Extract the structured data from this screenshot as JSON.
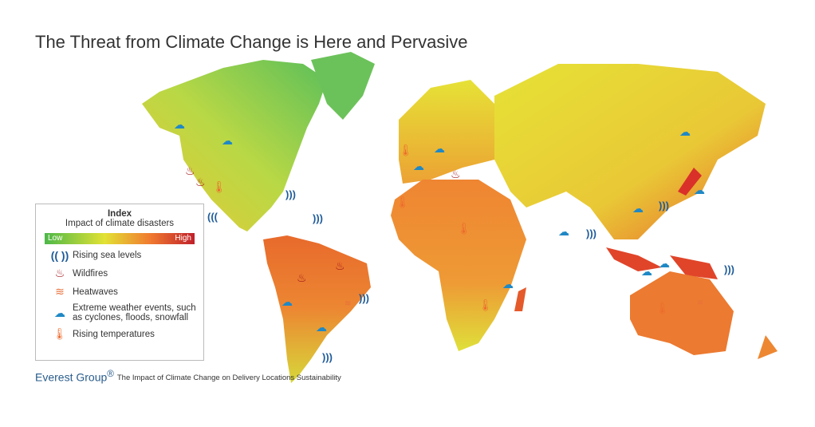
{
  "title": "The Threat from Climate Change is Here and Pervasive",
  "legend": {
    "heading": "Index",
    "subheading": "Impact of climate disasters",
    "scale_low": "Low",
    "scale_high": "High",
    "scale_colors": [
      "#4cb848",
      "#e2e234",
      "#f07b30",
      "#c0202a"
    ],
    "items": [
      {
        "icon": "rising-sea-levels-icon",
        "label": "Rising sea levels"
      },
      {
        "icon": "wildfire-icon",
        "label": "Wildfires"
      },
      {
        "icon": "heatwave-icon",
        "label": "Heatwaves"
      },
      {
        "icon": "rain-cloud-icon",
        "label": "Extreme weather events, such as cyclones, floods, snowfall"
      },
      {
        "icon": "thermometer-icon",
        "label": "Rising temperatures"
      }
    ]
  },
  "footer": {
    "brand": "Everest Group",
    "registered": "®",
    "source": "The Impact of Climate Change on Delivery Locations Sustainability"
  }
}
